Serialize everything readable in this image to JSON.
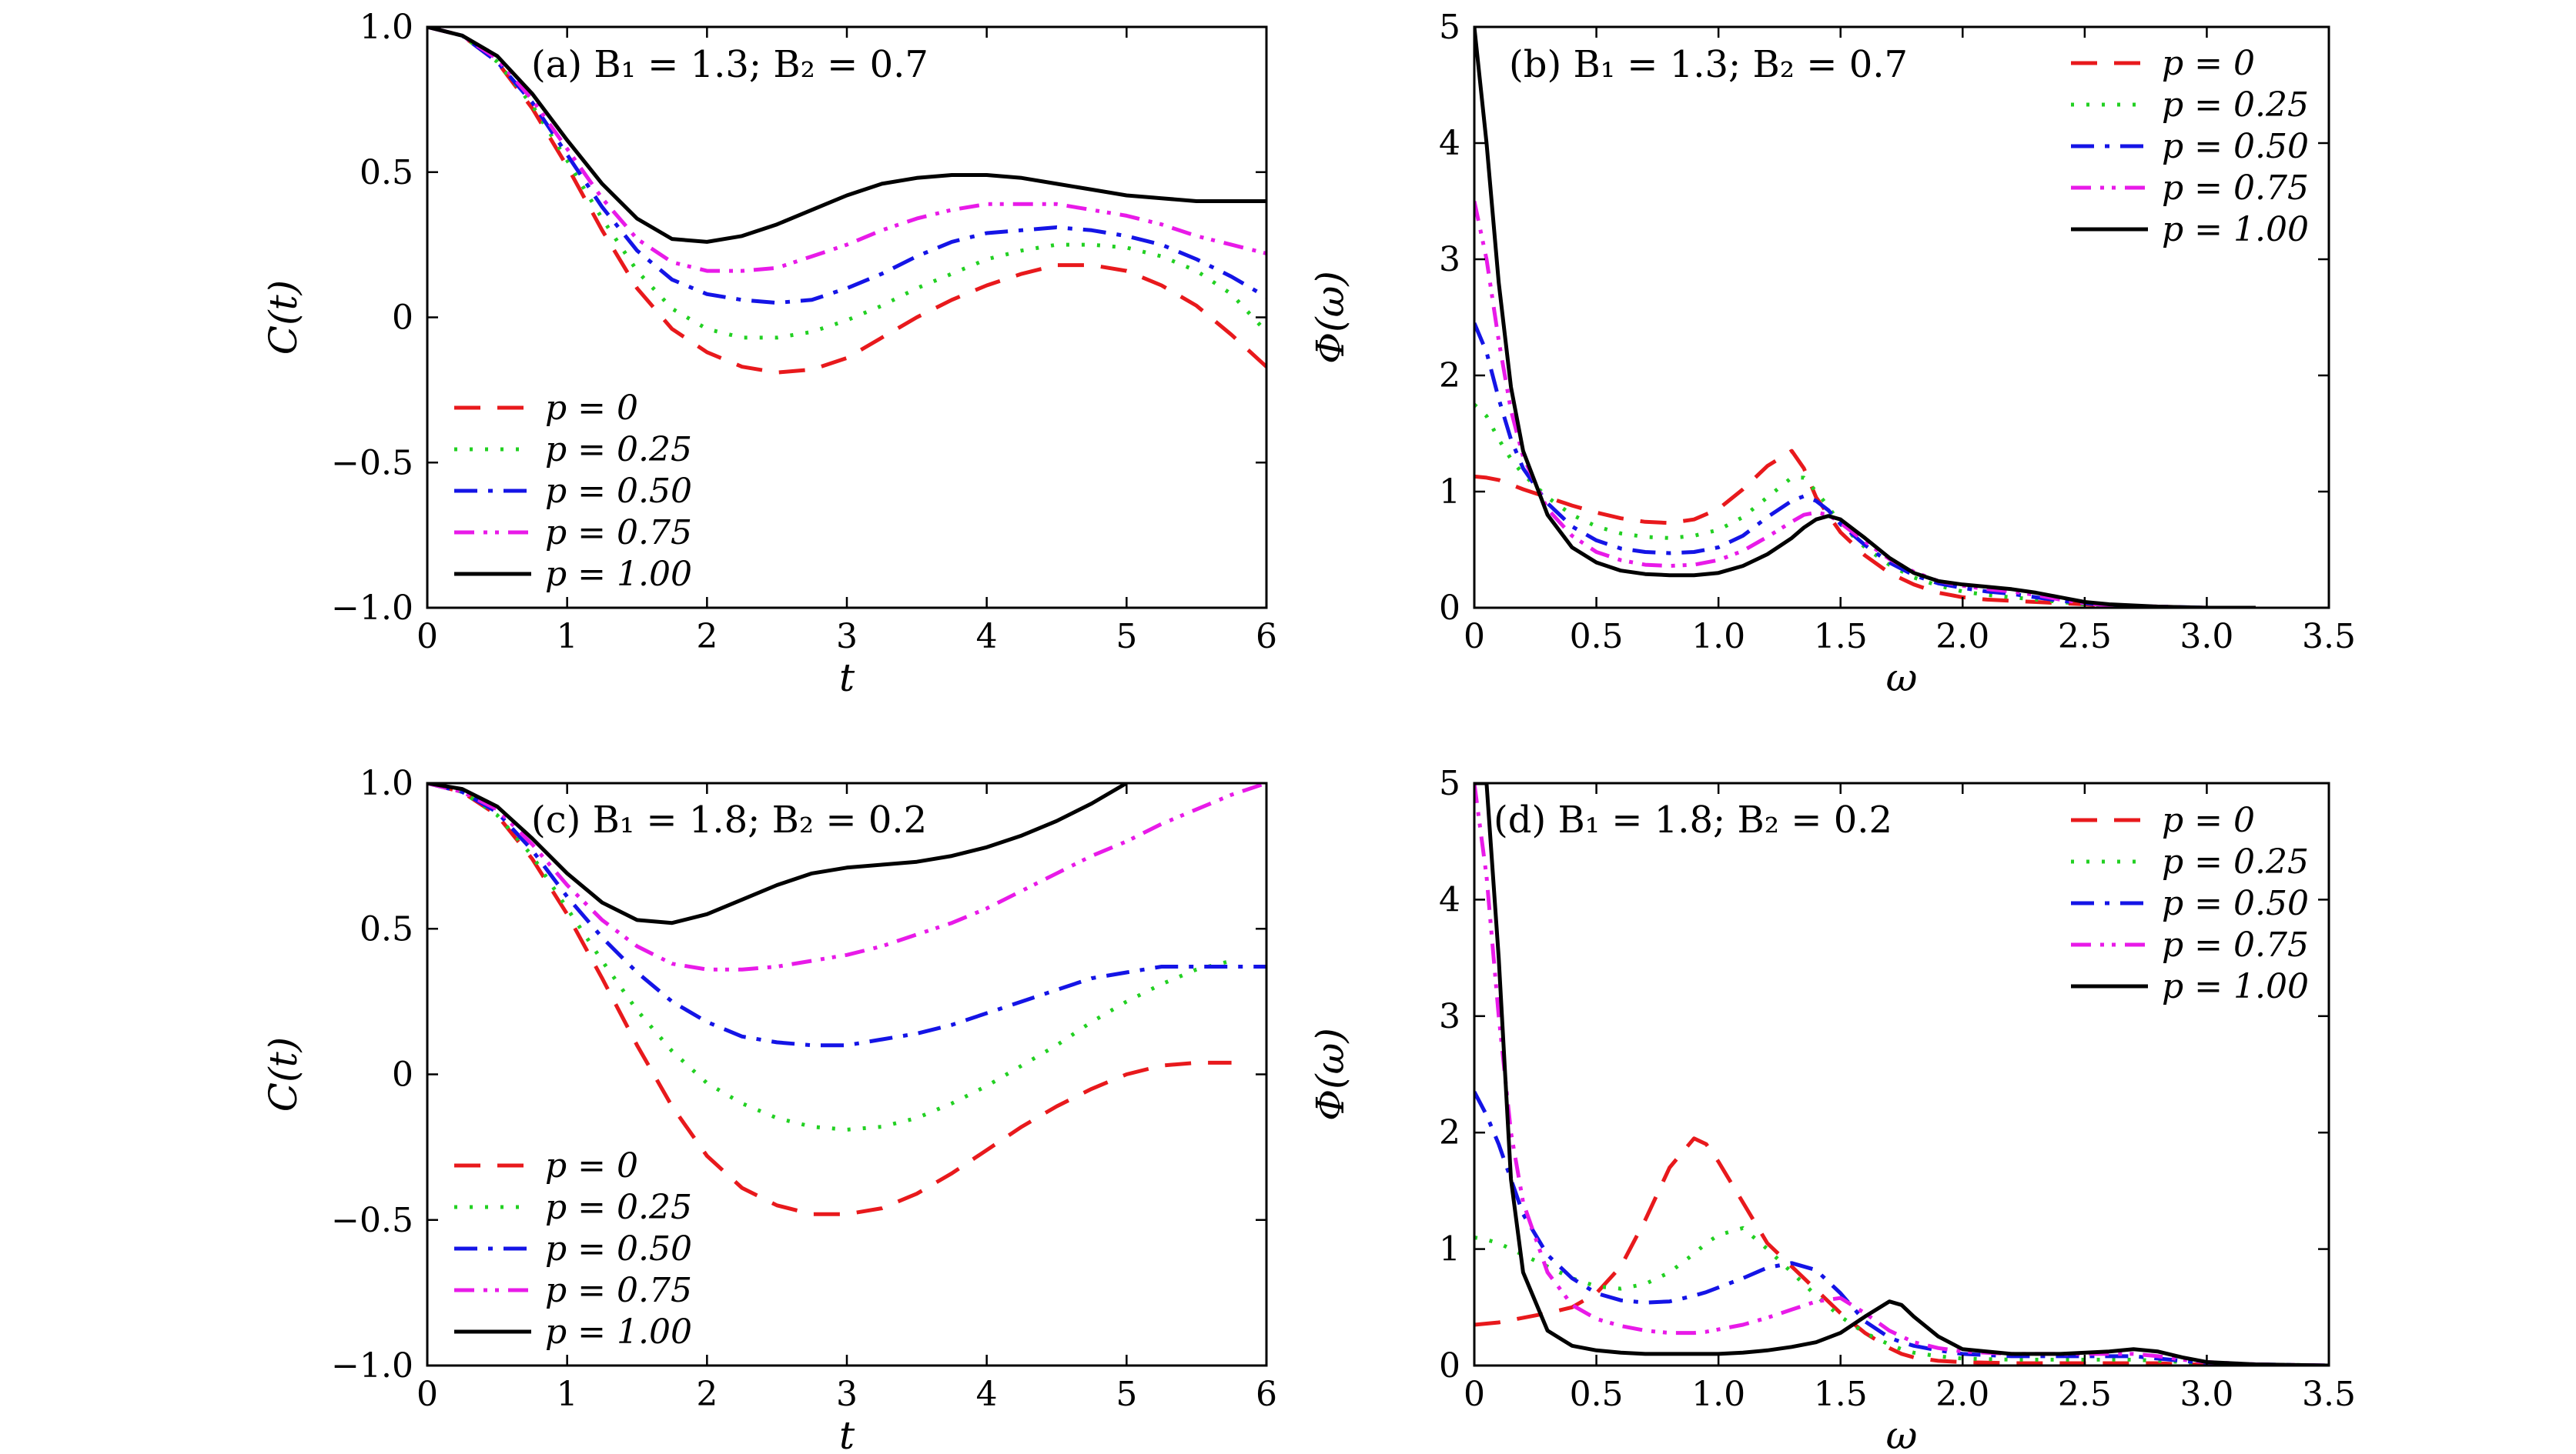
{
  "figure": {
    "panel_order": [
      "a",
      "b",
      "c",
      "d"
    ]
  },
  "style": {
    "series_colors": [
      "#e8191c",
      "#22d022",
      "#1414e6",
      "#e81ae8",
      "#000000"
    ],
    "series_dash": [
      "34,22",
      "4,16",
      "30,14,6,14",
      "26,12,5,10,5,12",
      ""
    ]
  },
  "chart_data": [
    {
      "id": "a",
      "type": "line",
      "title": "(a)   B₁ = 1.3;  B₂ = 0.7",
      "xlabel": "t",
      "ylabel": "C(t)",
      "xlim": [
        0,
        6
      ],
      "ylim": [
        -1,
        1
      ],
      "xticks": [
        0,
        1,
        2,
        3,
        4,
        5,
        6
      ],
      "xtick_labels": [
        "0",
        "1",
        "2",
        "3",
        "4",
        "5",
        "6"
      ],
      "yticks": [
        -1,
        -0.5,
        0,
        0.5,
        1
      ],
      "ytick_labels": [
        "−1.0",
        "−0.5",
        "0",
        "0.5",
        "1.0"
      ],
      "legend": "bottom-left",
      "x": [
        0,
        0.25,
        0.5,
        0.75,
        1,
        1.25,
        1.5,
        1.75,
        2,
        2.25,
        2.5,
        2.75,
        3,
        3.25,
        3.5,
        3.75,
        4,
        4.25,
        4.5,
        4.75,
        5,
        5.25,
        5.5,
        5.75,
        6
      ],
      "series": [
        {
          "name": "p = 0",
          "values": [
            1.0,
            0.97,
            0.88,
            0.72,
            0.52,
            0.3,
            0.1,
            -0.04,
            -0.12,
            -0.17,
            -0.19,
            -0.18,
            -0.14,
            -0.07,
            0.0,
            0.06,
            0.11,
            0.15,
            0.18,
            0.18,
            0.16,
            0.11,
            0.04,
            -0.06,
            -0.17
          ]
        },
        {
          "name": "p = 0.25",
          "values": [
            1.0,
            0.97,
            0.88,
            0.73,
            0.54,
            0.34,
            0.16,
            0.03,
            -0.04,
            -0.07,
            -0.07,
            -0.05,
            -0.01,
            0.04,
            0.1,
            0.15,
            0.2,
            0.23,
            0.25,
            0.25,
            0.24,
            0.21,
            0.16,
            0.08,
            -0.05
          ]
        },
        {
          "name": "p = 0.50",
          "values": [
            1.0,
            0.97,
            0.88,
            0.74,
            0.56,
            0.38,
            0.23,
            0.13,
            0.08,
            0.06,
            0.05,
            0.06,
            0.1,
            0.15,
            0.21,
            0.26,
            0.29,
            0.3,
            0.31,
            0.3,
            0.28,
            0.25,
            0.2,
            0.14,
            0.07
          ]
        },
        {
          "name": "p = 0.75",
          "values": [
            1.0,
            0.97,
            0.89,
            0.75,
            0.58,
            0.41,
            0.27,
            0.19,
            0.16,
            0.16,
            0.17,
            0.21,
            0.25,
            0.3,
            0.34,
            0.37,
            0.39,
            0.39,
            0.39,
            0.37,
            0.35,
            0.32,
            0.28,
            0.25,
            0.22
          ]
        },
        {
          "name": "p = 1.00",
          "values": [
            1.0,
            0.97,
            0.9,
            0.77,
            0.61,
            0.46,
            0.34,
            0.27,
            0.26,
            0.28,
            0.32,
            0.37,
            0.42,
            0.46,
            0.48,
            0.49,
            0.49,
            0.48,
            0.46,
            0.44,
            0.42,
            0.41,
            0.4,
            0.4,
            0.4
          ]
        }
      ]
    },
    {
      "id": "b",
      "type": "line",
      "title": "(b)         B₁ = 1.3;  B₂ = 0.7",
      "xlabel": "ω",
      "ylabel": "Φ(ω)",
      "xlim": [
        0,
        3.5
      ],
      "ylim": [
        0,
        5
      ],
      "xticks": [
        0,
        0.5,
        1,
        1.5,
        2,
        2.5,
        3,
        3.5
      ],
      "xtick_labels": [
        "0",
        "0.5",
        "1.0",
        "1.5",
        "2.0",
        "2.5",
        "3.0",
        "3.5"
      ],
      "yticks": [
        0,
        1,
        2,
        3,
        4,
        5
      ],
      "ytick_labels": [
        "0",
        "1",
        "2",
        "3",
        "4",
        "5"
      ],
      "legend": "top-right",
      "x": [
        0,
        0.05,
        0.1,
        0.15,
        0.2,
        0.3,
        0.4,
        0.5,
        0.6,
        0.7,
        0.8,
        0.9,
        1.0,
        1.1,
        1.2,
        1.3,
        1.35,
        1.4,
        1.45,
        1.5,
        1.6,
        1.7,
        1.8,
        1.9,
        2.0,
        2.1,
        2.2,
        2.3,
        2.4,
        2.5,
        2.6,
        2.8,
        3.0,
        3.2
      ],
      "series": [
        {
          "name": "p = 0",
          "values": [
            1.13,
            1.12,
            1.1,
            1.06,
            1.02,
            0.95,
            0.88,
            0.82,
            0.77,
            0.74,
            0.73,
            0.76,
            0.85,
            1.02,
            1.22,
            1.35,
            1.2,
            0.95,
            0.8,
            0.65,
            0.45,
            0.3,
            0.2,
            0.13,
            0.09,
            0.07,
            0.06,
            0.05,
            0.04,
            0.03,
            0.02,
            0.01,
            0.0,
            0.0
          ]
        },
        {
          "name": "p = 0.25",
          "values": [
            1.75,
            1.65,
            1.45,
            1.28,
            1.15,
            0.95,
            0.8,
            0.7,
            0.64,
            0.61,
            0.6,
            0.62,
            0.67,
            0.78,
            0.95,
            1.12,
            1.12,
            1.0,
            0.87,
            0.72,
            0.52,
            0.37,
            0.26,
            0.19,
            0.14,
            0.11,
            0.09,
            0.07,
            0.05,
            0.03,
            0.02,
            0.01,
            0.0,
            0.0
          ]
        },
        {
          "name": "p = 0.50",
          "values": [
            2.45,
            2.2,
            1.8,
            1.45,
            1.2,
            0.9,
            0.7,
            0.58,
            0.51,
            0.48,
            0.47,
            0.48,
            0.52,
            0.62,
            0.78,
            0.92,
            0.96,
            0.92,
            0.84,
            0.72,
            0.54,
            0.39,
            0.28,
            0.21,
            0.17,
            0.14,
            0.12,
            0.09,
            0.06,
            0.04,
            0.02,
            0.01,
            0.0,
            0.0
          ]
        },
        {
          "name": "p = 0.75",
          "values": [
            3.5,
            3.0,
            2.3,
            1.7,
            1.3,
            0.85,
            0.62,
            0.48,
            0.41,
            0.37,
            0.36,
            0.37,
            0.41,
            0.49,
            0.61,
            0.74,
            0.8,
            0.82,
            0.8,
            0.73,
            0.57,
            0.42,
            0.31,
            0.23,
            0.19,
            0.16,
            0.14,
            0.11,
            0.07,
            0.04,
            0.02,
            0.01,
            0.0,
            0.0
          ]
        },
        {
          "name": "p = 1.00",
          "values": [
            5.0,
            4.0,
            2.8,
            1.9,
            1.35,
            0.8,
            0.52,
            0.39,
            0.32,
            0.29,
            0.28,
            0.28,
            0.3,
            0.36,
            0.46,
            0.6,
            0.69,
            0.76,
            0.79,
            0.76,
            0.6,
            0.43,
            0.3,
            0.23,
            0.2,
            0.18,
            0.16,
            0.13,
            0.09,
            0.05,
            0.03,
            0.01,
            0.0,
            0.0
          ]
        }
      ]
    },
    {
      "id": "c",
      "type": "line",
      "title": "(c)  B₁ = 1.8;  B₂ = 0.2",
      "xlabel": "t",
      "ylabel": "C(t)",
      "xlim": [
        0,
        6
      ],
      "ylim": [
        -1,
        1
      ],
      "xticks": [
        0,
        1,
        2,
        3,
        4,
        5,
        6
      ],
      "xtick_labels": [
        "0",
        "1",
        "2",
        "3",
        "4",
        "5",
        "6"
      ],
      "yticks": [
        -1,
        -0.5,
        0,
        0.5,
        1
      ],
      "ytick_labels": [
        "−1.0",
        "−0.5",
        "0",
        "0.5",
        "1.0"
      ],
      "legend": "bottom-left",
      "x": [
        0,
        0.25,
        0.5,
        0.75,
        1,
        1.25,
        1.5,
        1.75,
        2,
        2.25,
        2.5,
        2.75,
        3,
        3.25,
        3.5,
        3.75,
        4,
        4.25,
        4.5,
        4.75,
        5,
        5.25,
        5.5,
        5.75,
        6
      ],
      "series": [
        {
          "name": "p = 0",
          "values": [
            1.0,
            0.97,
            0.89,
            0.74,
            0.55,
            0.33,
            0.1,
            -0.11,
            -0.28,
            -0.39,
            -0.45,
            -0.48,
            -0.48,
            -0.46,
            -0.41,
            -0.34,
            -0.26,
            -0.18,
            -0.11,
            -0.05,
            0.0,
            0.03,
            0.04,
            0.04,
            null
          ]
        },
        {
          "name": "p = 0.25",
          "values": [
            1.0,
            0.97,
            0.89,
            0.75,
            0.57,
            0.39,
            0.22,
            0.08,
            -0.03,
            -0.1,
            -0.15,
            -0.18,
            -0.19,
            -0.18,
            -0.15,
            -0.1,
            -0.04,
            0.03,
            0.1,
            0.18,
            0.25,
            0.31,
            0.36,
            0.39,
            null
          ]
        },
        {
          "name": "p = 0.50",
          "values": [
            1.0,
            0.97,
            0.9,
            0.77,
            0.61,
            0.47,
            0.35,
            0.25,
            0.18,
            0.13,
            0.11,
            0.1,
            0.1,
            0.12,
            0.14,
            0.17,
            0.21,
            0.25,
            0.29,
            0.33,
            0.35,
            0.37,
            0.37,
            0.37,
            0.37
          ]
        },
        {
          "name": "p = 0.75",
          "values": [
            1.0,
            0.97,
            0.91,
            0.79,
            0.65,
            0.53,
            0.44,
            0.38,
            0.36,
            0.36,
            0.37,
            0.39,
            0.41,
            0.44,
            0.48,
            0.52,
            0.57,
            0.63,
            0.69,
            0.75,
            0.8,
            0.86,
            0.91,
            0.96,
            1.0
          ]
        },
        {
          "name": "p = 1.00",
          "values": [
            1.0,
            0.98,
            0.92,
            0.81,
            0.69,
            0.59,
            0.53,
            0.52,
            0.55,
            0.6,
            0.65,
            0.69,
            0.71,
            0.72,
            0.73,
            0.75,
            0.78,
            0.82,
            0.87,
            0.93,
            1.0,
            null,
            null,
            null,
            null
          ]
        }
      ]
    },
    {
      "id": "d",
      "type": "line",
      "title": "(d)  B₁ = 1.8;  B₂ = 0.2",
      "xlabel": "ω",
      "ylabel": "Φ(ω)",
      "xlim": [
        0,
        3.5
      ],
      "ylim": [
        0,
        5
      ],
      "xticks": [
        0,
        0.5,
        1,
        1.5,
        2,
        2.5,
        3,
        3.5
      ],
      "xtick_labels": [
        "0",
        "0.5",
        "1.0",
        "1.5",
        "2.0",
        "2.5",
        "3.0",
        "3.5"
      ],
      "yticks": [
        0,
        1,
        2,
        3,
        4,
        5
      ],
      "ytick_labels": [
        "0",
        "1",
        "2",
        "3",
        "4",
        "5"
      ],
      "legend": "top-right",
      "x": [
        0,
        0.05,
        0.1,
        0.15,
        0.2,
        0.3,
        0.4,
        0.5,
        0.6,
        0.7,
        0.8,
        0.9,
        0.95,
        1.0,
        1.1,
        1.2,
        1.3,
        1.4,
        1.5,
        1.6,
        1.7,
        1.75,
        1.8,
        1.9,
        2.0,
        2.2,
        2.4,
        2.6,
        2.7,
        2.8,
        2.9,
        3.0,
        3.2,
        3.5
      ],
      "series": [
        {
          "name": "p = 0",
          "values": [
            0.35,
            0.36,
            0.37,
            0.39,
            0.41,
            0.45,
            0.5,
            0.62,
            0.85,
            1.25,
            1.7,
            1.95,
            1.9,
            1.75,
            1.4,
            1.05,
            0.85,
            0.65,
            0.45,
            0.28,
            0.15,
            0.1,
            0.07,
            0.04,
            0.03,
            0.02,
            0.02,
            0.02,
            0.02,
            0.02,
            0.01,
            0.01,
            0.0,
            0.0
          ]
        },
        {
          "name": "p = 0.25",
          "values": [
            1.1,
            1.08,
            1.05,
            1.0,
            0.95,
            0.85,
            0.75,
            0.68,
            0.66,
            0.7,
            0.8,
            0.96,
            1.05,
            1.12,
            1.18,
            1.0,
            0.8,
            0.6,
            0.42,
            0.28,
            0.18,
            0.14,
            0.11,
            0.08,
            0.06,
            0.05,
            0.05,
            0.05,
            0.05,
            0.04,
            0.03,
            0.02,
            0.01,
            0.0
          ]
        },
        {
          "name": "p = 0.50",
          "values": [
            2.35,
            2.15,
            1.9,
            1.6,
            1.3,
            0.95,
            0.75,
            0.62,
            0.56,
            0.54,
            0.55,
            0.6,
            0.63,
            0.67,
            0.75,
            0.84,
            0.88,
            0.82,
            0.62,
            0.38,
            0.24,
            0.2,
            0.17,
            0.13,
            0.1,
            0.08,
            0.08,
            0.08,
            0.08,
            0.06,
            0.04,
            0.02,
            0.01,
            0.0
          ]
        },
        {
          "name": "p = 0.75",
          "values": [
            5.0,
            4.2,
            3.0,
            2.0,
            1.4,
            0.8,
            0.52,
            0.4,
            0.34,
            0.3,
            0.28,
            0.28,
            0.29,
            0.31,
            0.35,
            0.41,
            0.48,
            0.55,
            0.58,
            0.45,
            0.3,
            0.25,
            0.2,
            0.15,
            0.12,
            0.1,
            0.1,
            0.1,
            0.1,
            0.08,
            0.05,
            0.03,
            0.01,
            0.0
          ]
        },
        {
          "name": "p = 1.00",
          "values": [
            5.0,
            5.0,
            3.5,
            1.6,
            0.8,
            0.3,
            0.17,
            0.13,
            0.11,
            0.1,
            0.1,
            0.1,
            0.1,
            0.1,
            0.11,
            0.13,
            0.16,
            0.2,
            0.28,
            0.42,
            0.55,
            0.52,
            0.42,
            0.25,
            0.14,
            0.1,
            0.1,
            0.12,
            0.14,
            0.12,
            0.07,
            0.03,
            0.01,
            0.0
          ]
        }
      ]
    }
  ]
}
